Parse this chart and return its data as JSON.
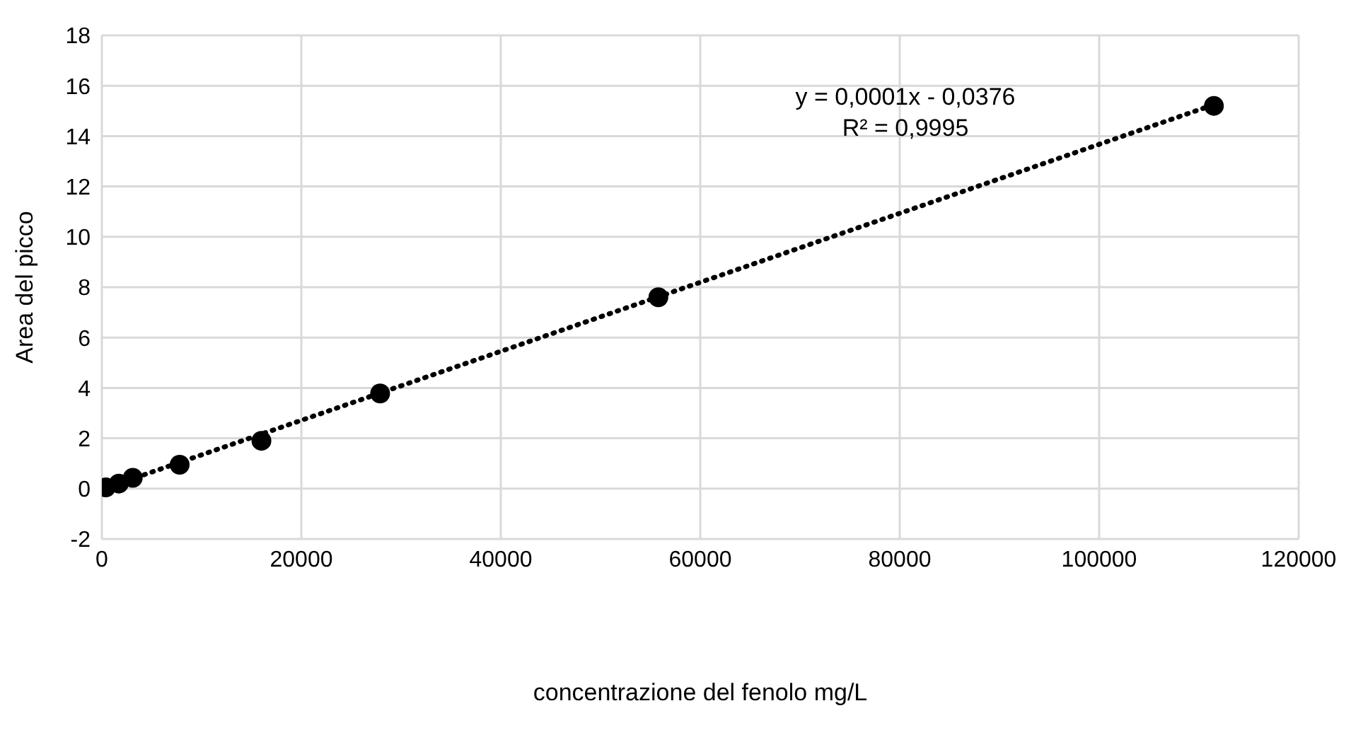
{
  "chart_data": {
    "type": "scatter",
    "xlabel": "concentrazione del fenolo  mg/L",
    "ylabel": "Area del picco",
    "xlim": [
      0,
      120000
    ],
    "xticks": [
      0,
      20000,
      40000,
      60000,
      80000,
      100000,
      120000
    ],
    "ylim": [
      -2,
      18
    ],
    "yticks": [
      -2,
      0,
      2,
      4,
      6,
      8,
      10,
      12,
      14,
      16,
      18
    ],
    "grid": true,
    "legend": false,
    "series": [
      {
        "color": "#000000",
        "marker": "circle",
        "x": [
          400,
          1700,
          3100,
          7800,
          16000,
          27900,
          55800,
          111500
        ],
        "values": [
          0.05,
          0.2,
          0.43,
          0.95,
          1.9,
          3.78,
          7.6,
          15.2
        ]
      },
      {
        "type": "line",
        "color": "#000000",
        "marker": "none",
        "line_style": "dotted",
        "x": [
          200,
          111500
        ],
        "values": [
          0,
          15.25
        ]
      }
    ],
    "annotations": [
      "y = 0,0001x - 0,0376",
      "R² = 0,9995"
    ]
  }
}
